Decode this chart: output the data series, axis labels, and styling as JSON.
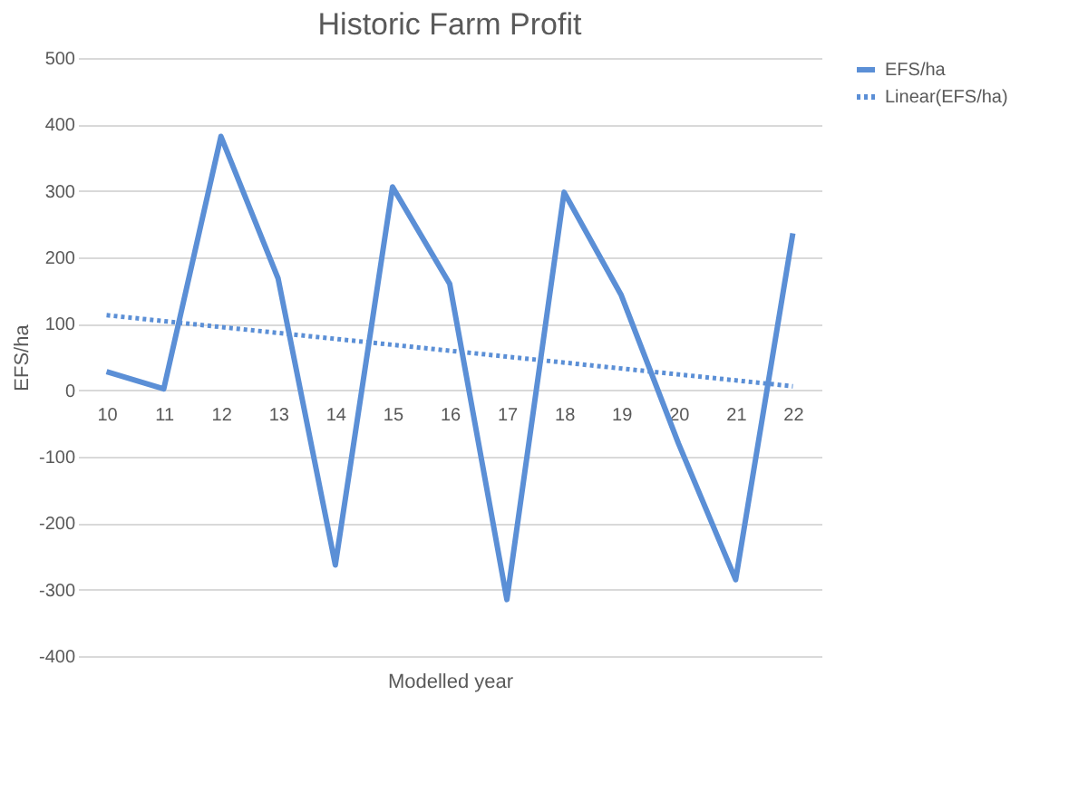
{
  "chart_data": {
    "type": "line",
    "title": "Historic Farm Profit",
    "xlabel": "Modelled year",
    "ylabel": "EFS/ha",
    "categories": [
      "10",
      "11",
      "12",
      "13",
      "14",
      "15",
      "16",
      "17",
      "18",
      "19",
      "20",
      "21",
      "22"
    ],
    "series": [
      {
        "name": "EFS/ha",
        "color": "#5b8fd6",
        "line_style": "solid",
        "values": [
          28,
          2,
          382,
          168,
          -263,
          306,
          160,
          -315,
          298,
          143,
          -80,
          -285,
          236
        ]
      },
      {
        "name": "Linear(EFS/ha)",
        "color": "#5b8fd6",
        "type": "line",
        "line_style": "dotted",
        "x": [
          "10",
          "22"
        ],
        "values": [
          113,
          6
        ]
      }
    ],
    "ylim": [
      -400,
      500
    ],
    "yticks": [
      -400,
      -300,
      -200,
      -100,
      0,
      100,
      200,
      300,
      400,
      500
    ],
    "grid": "y",
    "legend": "right",
    "marker": "none"
  }
}
